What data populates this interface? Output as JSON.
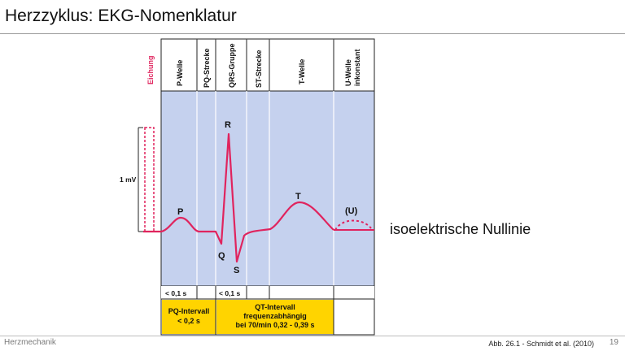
{
  "slide": {
    "title": "Herzzyklus: EKG-Nomenklatur",
    "side_label": "isoelektrische Nullinie",
    "footer_left": "Herzmechanik",
    "footer_ref": "Abb. 26.1 -  Schmidt et al. (2010)",
    "page_number": "19"
  },
  "figure": {
    "header": {
      "calibration": "Eichung",
      "phases": [
        "P-Welle",
        "PQ-Strecke",
        "QRS-Gruppe",
        "ST-Strecke",
        "T-Welle"
      ],
      "u_wave_line1": "U-Welle",
      "u_wave_line2": "inkonstant"
    },
    "calibration_value": "1 mV",
    "wave_labels": {
      "p": "P",
      "q": "Q",
      "r": "R",
      "s": "S",
      "t": "T",
      "u": "(U)"
    },
    "durations": {
      "p": "< 0,1 s",
      "qrs": "< 0,1 s"
    },
    "pq_interval": {
      "line1": "PQ-Intervall",
      "line2": "< 0,2 s"
    },
    "qt_interval": {
      "line1": "QT-Intervall",
      "line2": "frequenzabhängig",
      "line3": "bei 70/min  0,32 - 0,39 s"
    },
    "colors": {
      "panel": "#c5d1ee",
      "ecg": "#e0245e",
      "highlight": "#ffd400",
      "calibration": "#e0245e"
    }
  }
}
